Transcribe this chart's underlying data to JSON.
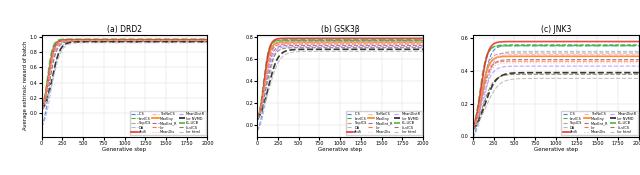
{
  "panels": [
    {
      "title": "(a) DRD2",
      "ylim": [
        -0.3,
        1.02
      ],
      "yticks": [
        0.0,
        0.2,
        0.4,
        0.6,
        0.8,
        1.0
      ],
      "yticklabels": [
        "0.0",
        "0.2",
        "0.4",
        "0.6",
        "0.8",
        "1.0"
      ]
    },
    {
      "title": "(b) GSK3β",
      "ylim": [
        -0.1,
        0.82
      ],
      "yticks": [
        0.0,
        0.2,
        0.4,
        0.6,
        0.8
      ],
      "yticklabels": [
        "0.0",
        "0.2",
        "0.4",
        "0.6",
        "0.8"
      ]
    },
    {
      "title": "(c) JNK3",
      "ylim": [
        0.0,
        0.62
      ],
      "yticks": [
        0.0,
        0.2,
        0.4,
        0.6
      ],
      "yticklabels": [
        "0.0",
        "0.2",
        "0.4",
        "0.6"
      ]
    }
  ],
  "xlabel": "Generative step",
  "ylabel": "Average extrinsic reward of batch",
  "xlim": [
    0,
    2000
  ],
  "xticks": [
    0,
    250,
    500,
    750,
    1000,
    1250,
    1500,
    1750,
    2000
  ],
  "legend_entries": [
    {
      "label": "ICS",
      "color": "#5577dd",
      "linestyle": "--",
      "linewidth": 0.8,
      "dashes": [
        4,
        2
      ]
    },
    {
      "label": "bnrICS",
      "color": "#33bb33",
      "linestyle": "--",
      "linewidth": 0.8,
      "dashes": [
        4,
        2
      ]
    },
    {
      "label": "SkpICS",
      "color": "#cc9999",
      "linestyle": "--",
      "linewidth": 0.8,
      "dashes": [
        4,
        2
      ]
    },
    {
      "label": "DA",
      "color": "#aabbdd",
      "linestyle": "--",
      "linewidth": 0.8,
      "dashes": [
        8,
        3
      ]
    },
    {
      "label": "AniS",
      "color": "#ee3333",
      "linestyle": "-",
      "linewidth": 1.2,
      "dashes": []
    },
    {
      "label": "TorNeCS",
      "color": "#ffaacc",
      "linestyle": "--",
      "linewidth": 0.8,
      "dashes": [
        4,
        2
      ]
    },
    {
      "label": "MaxEny",
      "color": "#ff8800",
      "linestyle": "-",
      "linewidth": 1.2,
      "dashes": []
    },
    {
      "label": "MaxEnt_R",
      "color": "#9966cc",
      "linestyle": "--",
      "linewidth": 0.8,
      "dashes": [
        4,
        2
      ]
    },
    {
      "label": "Ivr",
      "color": "#ff7733",
      "linestyle": "--",
      "linewidth": 0.8,
      "dashes": [
        4,
        2
      ]
    },
    {
      "label": "MeanDis",
      "color": "#ffbb88",
      "linestyle": ":",
      "linewidth": 0.8,
      "dashes": []
    },
    {
      "label": "MeanDistR",
      "color": "#bb99ff",
      "linestyle": "--",
      "linewidth": 0.8,
      "dashes": [
        4,
        2
      ]
    },
    {
      "label": "Ivr NVMD",
      "color": "#222222",
      "linestyle": "--",
      "linewidth": 1.2,
      "dashes": [
        6,
        2
      ]
    },
    {
      "label": "KL-UCB",
      "color": "#44bb44",
      "linestyle": "--",
      "linewidth": 1.2,
      "dashes": [
        4,
        2
      ]
    },
    {
      "label": "Li-vICS",
      "color": "#997755",
      "linestyle": "--",
      "linewidth": 0.8,
      "dashes": [
        4,
        2
      ]
    },
    {
      "label": "Ivr html",
      "color": "#bbbbbb",
      "linestyle": "--",
      "linewidth": 0.8,
      "dashes": [
        4,
        2
      ]
    }
  ],
  "curves_drd2": [
    {
      "label": "ICS",
      "plateau": 0.955,
      "steep": 0.03,
      "inflect": 90,
      "start": -0.25
    },
    {
      "label": "DA",
      "plateau": 0.94,
      "steep": 0.022,
      "inflect": 120,
      "start": -0.25
    },
    {
      "label": "MaxEny",
      "plateau": 0.96,
      "steep": 0.032,
      "inflect": 80,
      "start": 0.0
    },
    {
      "label": "MeanDis",
      "plateau": 0.95,
      "steep": 0.03,
      "inflect": 85,
      "start": 0.0
    },
    {
      "label": "KL-UCB",
      "plateau": 0.965,
      "steep": 0.034,
      "inflect": 75,
      "start": 0.0
    },
    {
      "label": "bnrICS",
      "plateau": 0.96,
      "steep": 0.032,
      "inflect": 78,
      "start": 0.0
    },
    {
      "label": "AniS",
      "plateau": 0.955,
      "steep": 0.031,
      "inflect": 85,
      "start": 0.0
    },
    {
      "label": "MaxEnt_R",
      "plateau": 0.945,
      "steep": 0.028,
      "inflect": 95,
      "start": 0.0
    },
    {
      "label": "MeanDistR",
      "plateau": 0.94,
      "steep": 0.026,
      "inflect": 100,
      "start": 0.0
    },
    {
      "label": "Li-vICS",
      "plateau": 0.935,
      "steep": 0.025,
      "inflect": 105,
      "start": 0.0
    },
    {
      "label": "SkpICS",
      "plateau": 0.95,
      "steep": 0.03,
      "inflect": 82,
      "start": 0.0
    },
    {
      "label": "TorNeCS",
      "plateau": 0.945,
      "steep": 0.028,
      "inflect": 92,
      "start": 0.0
    },
    {
      "label": "Ivr",
      "plateau": 0.94,
      "steep": 0.03,
      "inflect": 88,
      "start": 0.0
    },
    {
      "label": "Ivr NVMD",
      "plateau": 0.93,
      "steep": 0.022,
      "inflect": 130,
      "start": 0.0
    },
    {
      "label": "Ivr html",
      "plateau": 0.92,
      "steep": 0.02,
      "inflect": 140,
      "start": 0.0
    }
  ],
  "curves_gsk3b": [
    {
      "label": "ICS",
      "plateau": 0.77,
      "steep": 0.028,
      "inflect": 100,
      "start": -0.1
    },
    {
      "label": "DA",
      "plateau": 0.75,
      "steep": 0.022,
      "inflect": 125,
      "start": -0.1
    },
    {
      "label": "MaxEny",
      "plateau": 0.755,
      "steep": 0.03,
      "inflect": 85,
      "start": 0.0
    },
    {
      "label": "MeanDis",
      "plateau": 0.74,
      "steep": 0.028,
      "inflect": 90,
      "start": 0.0
    },
    {
      "label": "KL-UCB",
      "plateau": 0.775,
      "steep": 0.032,
      "inflect": 78,
      "start": 0.0
    },
    {
      "label": "bnrICS",
      "plateau": 0.775,
      "steep": 0.03,
      "inflect": 80,
      "start": 0.0
    },
    {
      "label": "AniS",
      "plateau": 0.79,
      "steep": 0.032,
      "inflect": 85,
      "start": 0.0
    },
    {
      "label": "MaxEnt_R",
      "plateau": 0.725,
      "steep": 0.026,
      "inflect": 100,
      "start": 0.0
    },
    {
      "label": "MeanDistR",
      "plateau": 0.715,
      "steep": 0.024,
      "inflect": 105,
      "start": 0.0
    },
    {
      "label": "Li-vICS",
      "plateau": 0.705,
      "steep": 0.022,
      "inflect": 110,
      "start": 0.0
    },
    {
      "label": "SkpICS",
      "plateau": 0.76,
      "steep": 0.028,
      "inflect": 88,
      "start": 0.0
    },
    {
      "label": "TorNeCS",
      "plateau": 0.748,
      "steep": 0.026,
      "inflect": 96,
      "start": 0.0
    },
    {
      "label": "Ivr",
      "plateau": 0.738,
      "steep": 0.028,
      "inflect": 90,
      "start": 0.0
    },
    {
      "label": "Ivr NVMD",
      "plateau": 0.69,
      "steep": 0.018,
      "inflect": 135,
      "start": 0.0
    },
    {
      "label": "Ivr html",
      "plateau": 0.672,
      "steep": 0.016,
      "inflect": 145,
      "start": 0.0
    }
  ],
  "curves_jnk3": [
    {
      "label": "ICS",
      "plateau": 0.555,
      "steep": 0.022,
      "inflect": 115,
      "start": -0.05
    },
    {
      "label": "DA",
      "plateau": 0.52,
      "steep": 0.018,
      "inflect": 140,
      "start": -0.05
    },
    {
      "label": "MaxEny",
      "plateau": 0.49,
      "steep": 0.022,
      "inflect": 100,
      "start": 0.0
    },
    {
      "label": "MeanDis",
      "plateau": 0.45,
      "steep": 0.02,
      "inflect": 108,
      "start": 0.0
    },
    {
      "label": "KL-UCB",
      "plateau": 0.555,
      "steep": 0.026,
      "inflect": 88,
      "start": 0.0
    },
    {
      "label": "bnrICS",
      "plateau": 0.56,
      "steep": 0.024,
      "inflect": 92,
      "start": 0.0
    },
    {
      "label": "AniS",
      "plateau": 0.58,
      "steep": 0.024,
      "inflect": 98,
      "start": 0.0
    },
    {
      "label": "MaxEnt_R",
      "plateau": 0.47,
      "steep": 0.02,
      "inflect": 112,
      "start": 0.0
    },
    {
      "label": "MeanDistR",
      "plateau": 0.43,
      "steep": 0.018,
      "inflect": 115,
      "start": 0.0
    },
    {
      "label": "Li-vICS",
      "plateau": 0.38,
      "steep": 0.016,
      "inflect": 125,
      "start": 0.0
    },
    {
      "label": "SkpICS",
      "plateau": 0.51,
      "steep": 0.022,
      "inflect": 102,
      "start": 0.0
    },
    {
      "label": "TorNeCS",
      "plateau": 0.5,
      "steep": 0.02,
      "inflect": 118,
      "start": 0.0
    },
    {
      "label": "Ivr",
      "plateau": 0.46,
      "steep": 0.022,
      "inflect": 105,
      "start": 0.0
    },
    {
      "label": "Ivr NVMD",
      "plateau": 0.39,
      "steep": 0.015,
      "inflect": 145,
      "start": 0.0
    },
    {
      "label": "Ivr html",
      "plateau": 0.355,
      "steep": 0.013,
      "inflect": 155,
      "start": 0.0
    }
  ]
}
